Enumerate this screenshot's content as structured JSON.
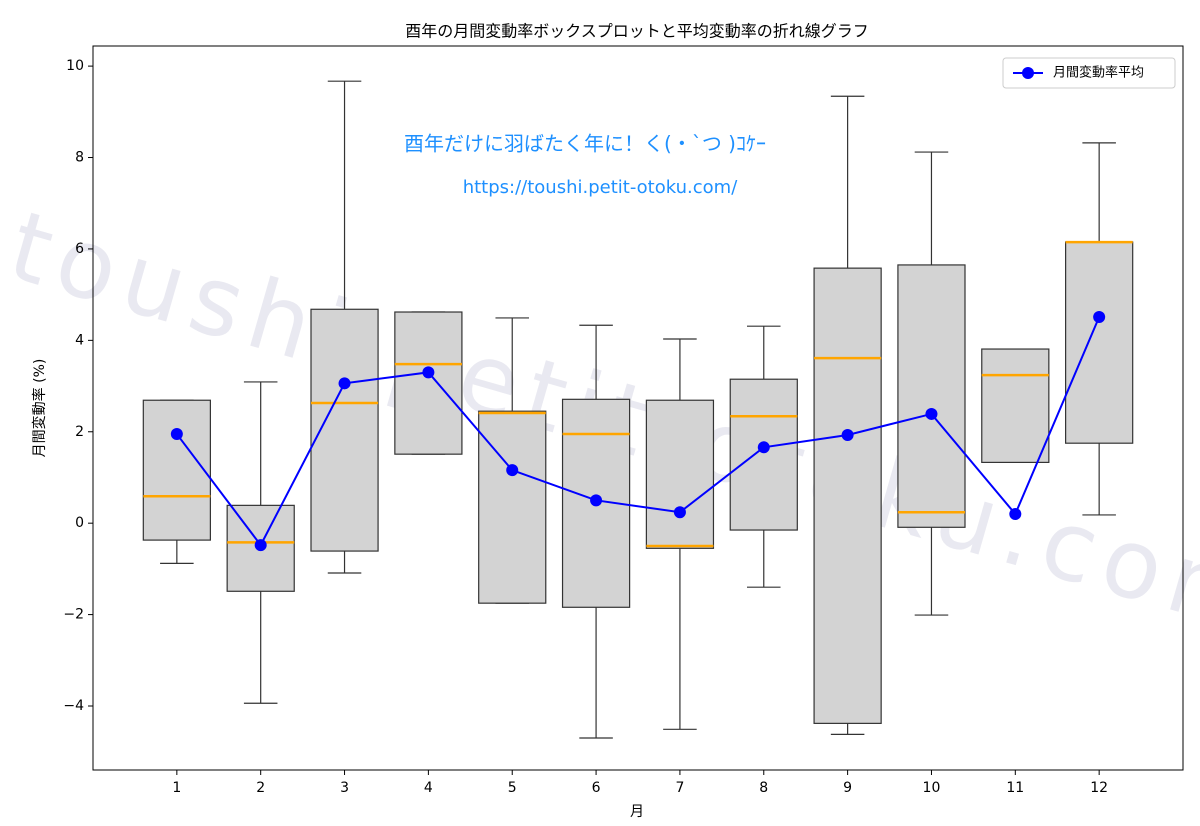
{
  "chart_data": {
    "type": "boxplot",
    "title": "酉年の月間変動率ボックスプロットと平均変動率の折れ線グラフ",
    "xlabel": "月",
    "ylabel": "月間変動率 (%)",
    "x": [
      1,
      2,
      3,
      4,
      5,
      6,
      7,
      8,
      9,
      10,
      11,
      12
    ],
    "xlim": [
      0,
      13
    ],
    "xticks": [
      1,
      2,
      3,
      4,
      5,
      6,
      7,
      8,
      9,
      10,
      11,
      12
    ],
    "ylim": [
      -5.4,
      10.44
    ],
    "yticks": [
      {
        "value": -4,
        "label": "−4"
      },
      {
        "value": -2,
        "label": "−2"
      },
      0,
      2,
      4,
      6,
      8,
      10
    ],
    "box_color": "#d3d3d3",
    "median_color": "#ffa500",
    "boxes": [
      {
        "low": -0.88,
        "q1": -0.37,
        "median": 0.59,
        "q3": 2.69,
        "high": 2.69
      },
      {
        "low": -3.94,
        "q1": -1.49,
        "median": -0.42,
        "q3": 0.39,
        "high": 3.09
      },
      {
        "low": -1.09,
        "q1": -0.61,
        "median": 2.63,
        "q3": 4.68,
        "high": 9.67
      },
      {
        "low": 1.51,
        "q1": 1.51,
        "median": 3.48,
        "q3": 4.62,
        "high": 4.62
      },
      {
        "low": -1.75,
        "q1": -1.75,
        "median": 2.41,
        "q3": 2.45,
        "high": 4.49
      },
      {
        "low": -4.7,
        "q1": -1.84,
        "median": 1.95,
        "q3": 2.71,
        "high": 4.33
      },
      {
        "low": -4.51,
        "q1": -0.55,
        "median": -0.5,
        "q3": 2.69,
        "high": 4.03
      },
      {
        "low": -1.4,
        "q1": -0.15,
        "median": 2.34,
        "q3": 3.15,
        "high": 4.31
      },
      {
        "low": -4.62,
        "q1": -4.38,
        "median": 3.61,
        "q3": 5.58,
        "high": 9.34
      },
      {
        "low": -2.01,
        "q1": -0.09,
        "median": 0.24,
        "q3": 5.65,
        "high": 8.12
      },
      {
        "low": 1.33,
        "q1": 1.33,
        "median": 3.24,
        "q3": 3.81,
        "high": 3.81
      },
      {
        "low": 0.18,
        "q1": 1.75,
        "median": 6.15,
        "q3": 6.15,
        "high": 8.32
      }
    ],
    "line": {
      "name": "月間変動率平均",
      "color": "#0000ff",
      "values": [
        1.95,
        -0.48,
        3.06,
        3.3,
        1.16,
        0.5,
        0.24,
        1.66,
        1.93,
        2.39,
        0.2,
        4.51
      ]
    },
    "legend": "upper right",
    "annotations": [
      "酉年だけに羽ばたく年に！く(・`つ )ｺｹｰ",
      "https://toushi.petit-otoku.com/"
    ],
    "watermark": "toushi.petit-otoku.com"
  }
}
